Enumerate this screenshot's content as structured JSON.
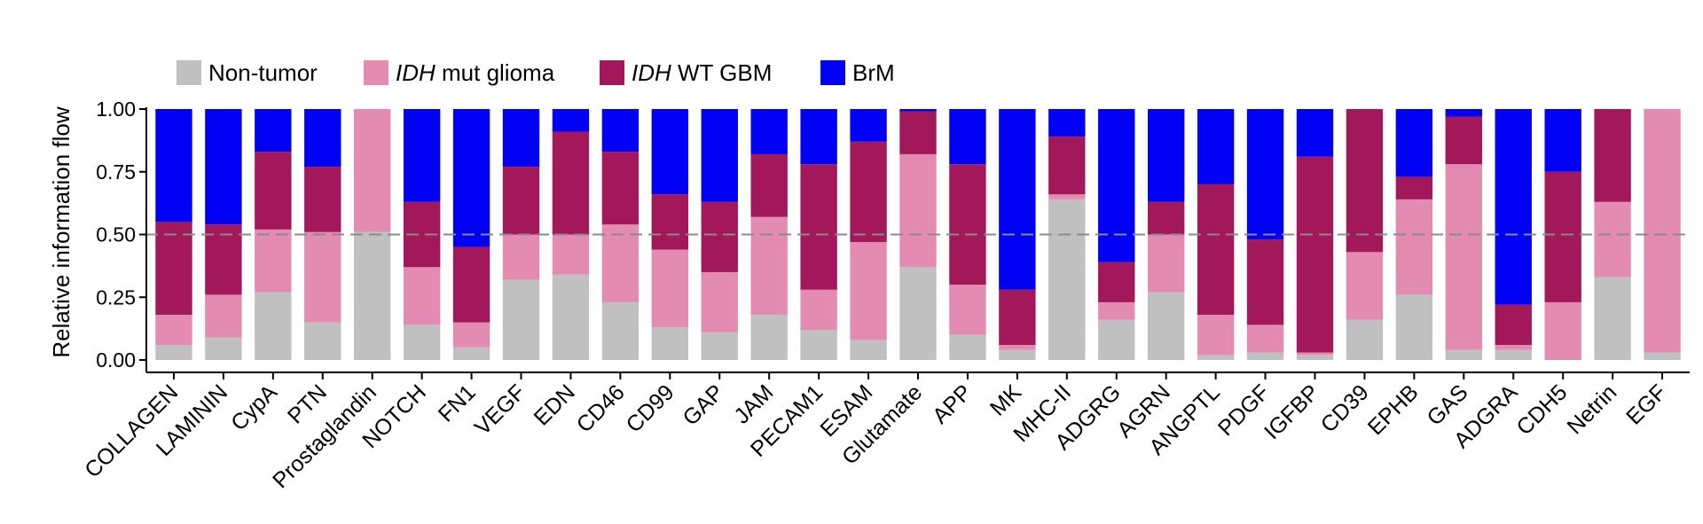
{
  "chart_data": {
    "type": "bar",
    "stacked": true,
    "normalized": true,
    "title": "",
    "xlabel": "",
    "ylabel": "Relative information flow",
    "ylim": [
      0,
      1
    ],
    "yticks": [
      "0.00",
      "0.25",
      "0.50",
      "0.75",
      "1.00"
    ],
    "reference_line": {
      "y": 0.5,
      "style": "dashed"
    },
    "legend_position": "top-left",
    "categories": [
      "COLLAGEN",
      "LAMININ",
      "CypA",
      "PTN",
      "Prostaglandin",
      "NOTCH",
      "FN1",
      "VEGF",
      "EDN",
      "CD46",
      "CD99",
      "GAP",
      "JAM",
      "PECAM1",
      "ESAM",
      "Glutamate",
      "APP",
      "MK",
      "MHC-II",
      "ADGRG",
      "AGRN",
      "ANGPTL",
      "PDGF",
      "IGFBP",
      "CD39",
      "EPHB",
      "GAS",
      "ADGRA",
      "CDH5",
      "Netrin",
      "EGF"
    ],
    "series": [
      {
        "name": "Non-tumor",
        "legend_prefix": "",
        "legend_suffix": "Non-tumor",
        "color": "#c0c0c0",
        "values": [
          0.06,
          0.09,
          0.27,
          0.15,
          0.51,
          0.14,
          0.05,
          0.32,
          0.34,
          0.23,
          0.13,
          0.11,
          0.18,
          0.12,
          0.08,
          0.37,
          0.1,
          0.04,
          0.64,
          0.16,
          0.27,
          0.02,
          0.03,
          0.02,
          0.16,
          0.26,
          0.04,
          0.04,
          0.0,
          0.33,
          0.03
        ]
      },
      {
        "name": "IDH mut glioma",
        "legend_prefix": "IDH",
        "legend_suffix": " mut glioma",
        "color": "#e38bb0",
        "values": [
          0.12,
          0.17,
          0.25,
          0.36,
          0.49,
          0.23,
          0.1,
          0.18,
          0.16,
          0.31,
          0.31,
          0.24,
          0.39,
          0.16,
          0.39,
          0.45,
          0.2,
          0.02,
          0.02,
          0.07,
          0.23,
          0.16,
          0.11,
          0.01,
          0.27,
          0.38,
          0.74,
          0.02,
          0.23,
          0.3,
          0.97
        ]
      },
      {
        "name": "IDH WT GBM",
        "legend_prefix": "IDH",
        "legend_suffix": " WT GBM",
        "color": "#a3185a",
        "values": [
          0.37,
          0.28,
          0.31,
          0.26,
          0.0,
          0.26,
          0.3,
          0.27,
          0.41,
          0.29,
          0.22,
          0.28,
          0.25,
          0.5,
          0.4,
          0.17,
          0.48,
          0.22,
          0.23,
          0.16,
          0.13,
          0.52,
          0.34,
          0.78,
          0.57,
          0.09,
          0.19,
          0.16,
          0.52,
          0.37,
          0.0
        ]
      },
      {
        "name": "BrM",
        "legend_prefix": "",
        "legend_suffix": "BrM",
        "color": "#0000f5",
        "values": [
          0.45,
          0.46,
          0.17,
          0.23,
          0.0,
          0.37,
          0.55,
          0.23,
          0.09,
          0.17,
          0.34,
          0.37,
          0.18,
          0.22,
          0.13,
          0.01,
          0.22,
          0.72,
          0.11,
          0.61,
          0.37,
          0.3,
          0.52,
          0.19,
          0.0,
          0.27,
          0.03,
          0.78,
          0.25,
          0.0,
          0.0
        ]
      }
    ]
  }
}
